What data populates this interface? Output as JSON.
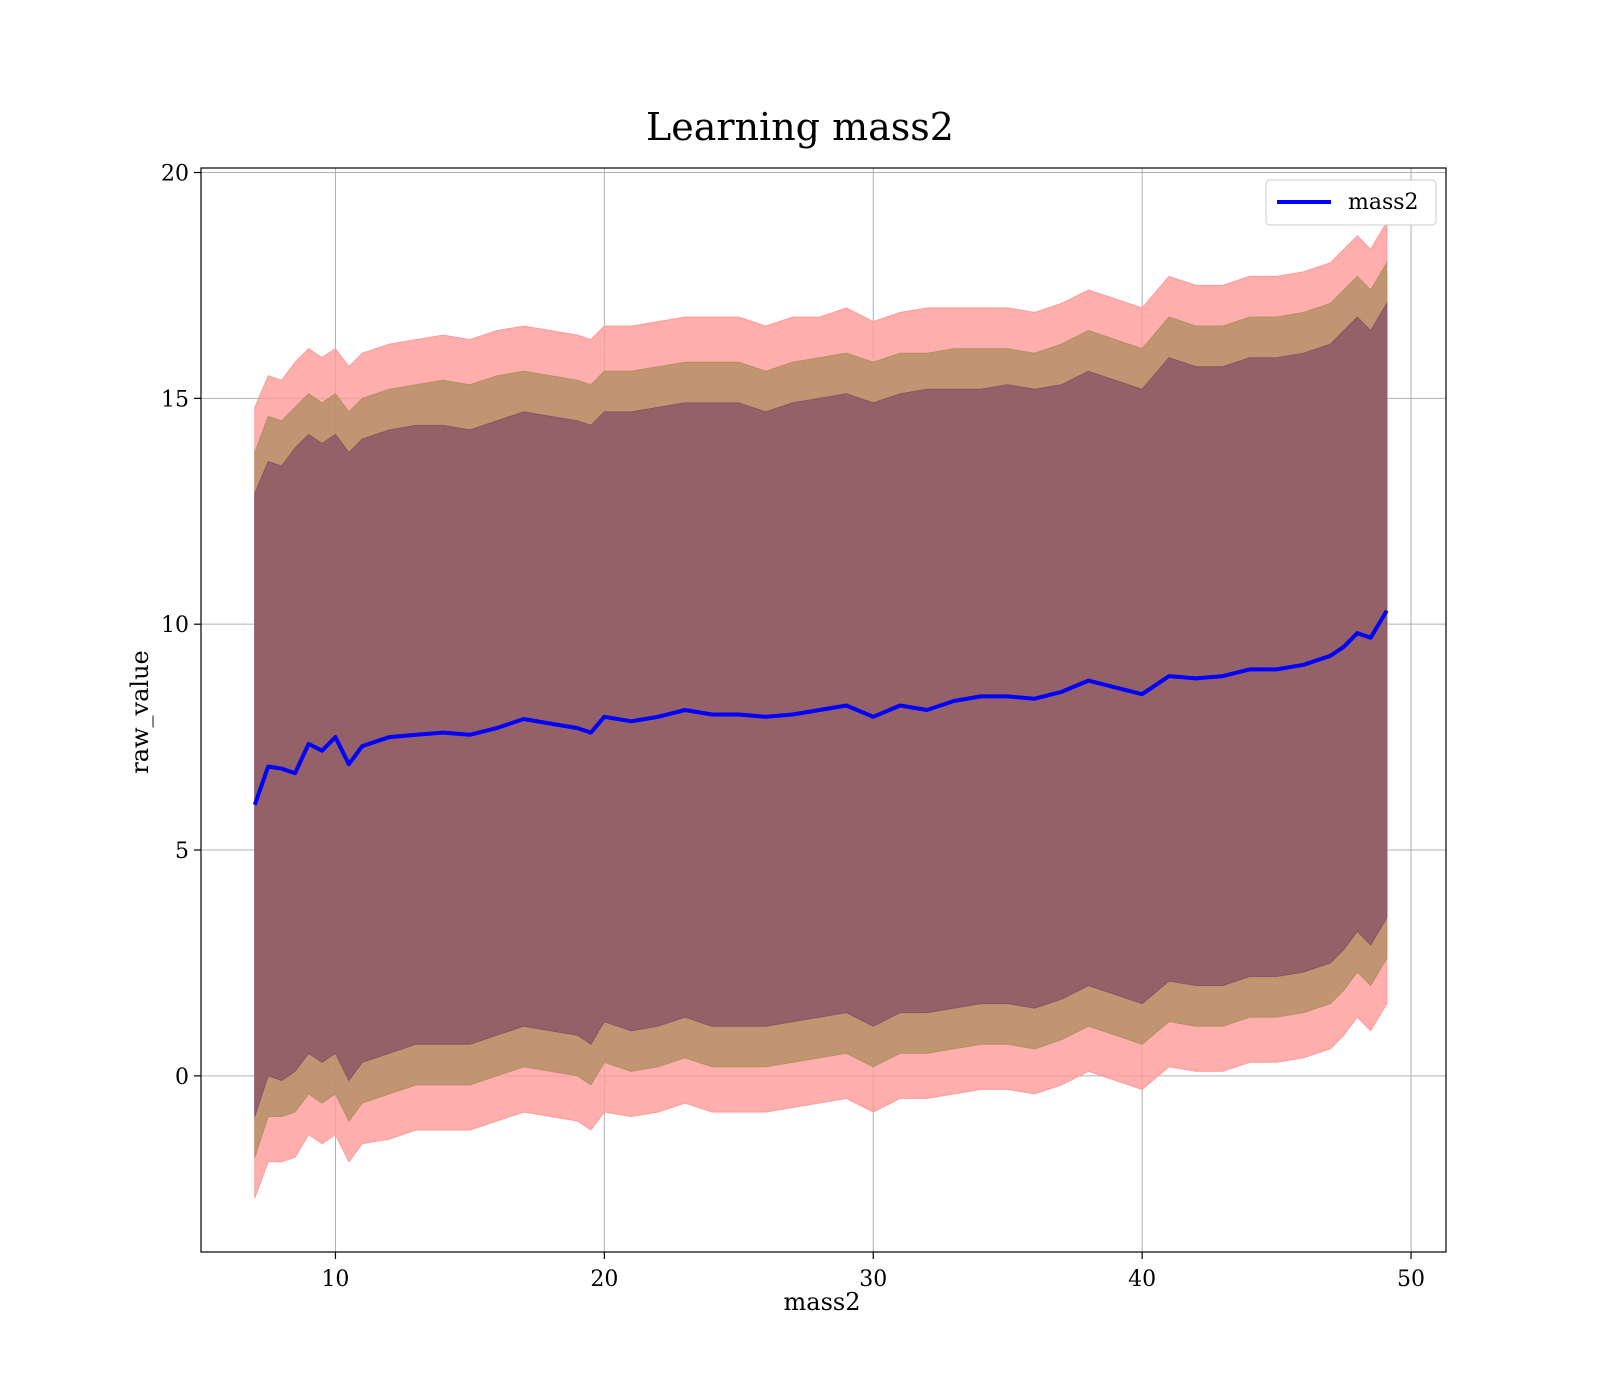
{
  "chart_data": {
    "type": "area",
    "title": "Learning mass2",
    "xlabel": "mass2",
    "ylabel": "raw_value",
    "xlim": [
      5,
      51.3
    ],
    "ylim": [
      -3.9,
      20.1
    ],
    "xticks": [
      10,
      20,
      30,
      40,
      50
    ],
    "yticks": [
      0,
      5,
      10,
      15,
      20
    ],
    "xtick_labels": [
      "10",
      "20",
      "30",
      "40",
      "50"
    ],
    "ytick_labels": [
      "0",
      "5",
      "10",
      "15",
      "20"
    ],
    "grid": true,
    "legend": {
      "position": "top-right",
      "entries": [
        {
          "label": "mass2",
          "color": "#0000ff"
        }
      ]
    },
    "x": [
      7.0,
      7.5,
      8.0,
      8.5,
      9.0,
      9.5,
      10.0,
      10.5,
      11.0,
      12.0,
      13.0,
      14.0,
      15.0,
      16.0,
      17.0,
      18.0,
      19.0,
      19.5,
      20.0,
      21.0,
      22.0,
      23.0,
      24.0,
      25.0,
      26.0,
      27.0,
      28.0,
      29.0,
      30.0,
      31.0,
      32.0,
      33.0,
      34.0,
      35.0,
      36.0,
      37.0,
      38.0,
      39.0,
      40.0,
      41.0,
      42.0,
      43.0,
      44.0,
      45.0,
      46.0,
      47.0,
      47.5,
      48.0,
      48.5,
      49.1
    ],
    "series": [
      {
        "name": "mass2",
        "color": "#0000ff",
        "mean": [
          6.0,
          6.85,
          6.8,
          6.7,
          7.35,
          7.2,
          7.5,
          6.9,
          7.3,
          7.5,
          7.55,
          7.6,
          7.55,
          7.7,
          7.9,
          7.8,
          7.7,
          7.6,
          7.95,
          7.85,
          7.95,
          8.1,
          8.0,
          8.0,
          7.95,
          8.0,
          8.1,
          8.2,
          7.95,
          8.2,
          8.1,
          8.3,
          8.4,
          8.4,
          8.35,
          8.5,
          8.75,
          8.6,
          8.45,
          8.85,
          8.8,
          8.85,
          9.0,
          9.0,
          9.1,
          9.3,
          9.5,
          9.8,
          9.7,
          10.3
        ]
      }
    ],
    "bands": [
      {
        "name": "outer band",
        "color": "#ff9a9a",
        "upper": [
          14.8,
          15.5,
          15.4,
          15.8,
          16.1,
          15.9,
          16.1,
          15.7,
          16.0,
          16.2,
          16.3,
          16.4,
          16.3,
          16.5,
          16.6,
          16.5,
          16.4,
          16.3,
          16.6,
          16.6,
          16.7,
          16.8,
          16.8,
          16.8,
          16.6,
          16.8,
          16.8,
          17.0,
          16.7,
          16.9,
          17.0,
          17.0,
          17.0,
          17.0,
          16.9,
          17.1,
          17.4,
          17.2,
          17.0,
          17.7,
          17.5,
          17.5,
          17.7,
          17.7,
          17.8,
          18.0,
          18.3,
          18.6,
          18.3,
          18.9
        ],
        "lower": [
          -2.7,
          -1.9,
          -1.9,
          -1.8,
          -1.3,
          -1.5,
          -1.3,
          -1.9,
          -1.5,
          -1.4,
          -1.2,
          -1.2,
          -1.2,
          -1.0,
          -0.8,
          -0.9,
          -1.0,
          -1.2,
          -0.8,
          -0.9,
          -0.8,
          -0.6,
          -0.8,
          -0.8,
          -0.8,
          -0.7,
          -0.6,
          -0.5,
          -0.8,
          -0.5,
          -0.5,
          -0.4,
          -0.3,
          -0.3,
          -0.4,
          -0.2,
          0.1,
          -0.1,
          -0.3,
          0.2,
          0.1,
          0.1,
          0.3,
          0.3,
          0.4,
          0.6,
          0.9,
          1.3,
          1.0,
          1.6
        ]
      },
      {
        "name": "middle band",
        "color": "#b38f63",
        "upper": [
          13.8,
          14.6,
          14.5,
          14.8,
          15.1,
          14.9,
          15.1,
          14.7,
          15.0,
          15.2,
          15.3,
          15.4,
          15.3,
          15.5,
          15.6,
          15.5,
          15.4,
          15.3,
          15.6,
          15.6,
          15.7,
          15.8,
          15.8,
          15.8,
          15.6,
          15.8,
          15.9,
          16.0,
          15.8,
          16.0,
          16.0,
          16.1,
          16.1,
          16.1,
          16.0,
          16.2,
          16.5,
          16.3,
          16.1,
          16.8,
          16.6,
          16.6,
          16.8,
          16.8,
          16.9,
          17.1,
          17.4,
          17.7,
          17.4,
          18.0
        ],
        "lower": [
          -1.8,
          -0.9,
          -0.9,
          -0.8,
          -0.4,
          -0.6,
          -0.4,
          -1.0,
          -0.6,
          -0.4,
          -0.2,
          -0.2,
          -0.2,
          0.0,
          0.2,
          0.1,
          0.0,
          -0.2,
          0.3,
          0.1,
          0.2,
          0.4,
          0.2,
          0.2,
          0.2,
          0.3,
          0.4,
          0.5,
          0.2,
          0.5,
          0.5,
          0.6,
          0.7,
          0.7,
          0.6,
          0.8,
          1.1,
          0.9,
          0.7,
          1.2,
          1.1,
          1.1,
          1.3,
          1.3,
          1.4,
          1.6,
          1.9,
          2.3,
          2.0,
          2.6
        ]
      },
      {
        "name": "inner band",
        "color": "#8a5465",
        "upper": [
          12.9,
          13.6,
          13.5,
          13.9,
          14.2,
          14.0,
          14.2,
          13.8,
          14.1,
          14.3,
          14.4,
          14.4,
          14.3,
          14.5,
          14.7,
          14.6,
          14.5,
          14.4,
          14.7,
          14.7,
          14.8,
          14.9,
          14.9,
          14.9,
          14.7,
          14.9,
          15.0,
          15.1,
          14.9,
          15.1,
          15.2,
          15.2,
          15.2,
          15.3,
          15.2,
          15.3,
          15.6,
          15.4,
          15.2,
          15.9,
          15.7,
          15.7,
          15.9,
          15.9,
          16.0,
          16.2,
          16.5,
          16.8,
          16.5,
          17.1
        ],
        "lower": [
          -0.9,
          0.0,
          -0.1,
          0.1,
          0.5,
          0.3,
          0.5,
          -0.1,
          0.3,
          0.5,
          0.7,
          0.7,
          0.7,
          0.9,
          1.1,
          1.0,
          0.9,
          0.7,
          1.2,
          1.0,
          1.1,
          1.3,
          1.1,
          1.1,
          1.1,
          1.2,
          1.3,
          1.4,
          1.1,
          1.4,
          1.4,
          1.5,
          1.6,
          1.6,
          1.5,
          1.7,
          2.0,
          1.8,
          1.6,
          2.1,
          2.0,
          2.0,
          2.2,
          2.2,
          2.3,
          2.5,
          2.8,
          3.2,
          2.9,
          3.5
        ]
      }
    ]
  }
}
